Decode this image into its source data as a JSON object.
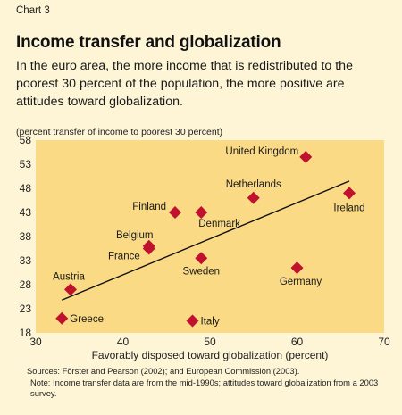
{
  "header": {
    "chart_label": "Chart 3",
    "title": "Income transfer and globalization",
    "subtitle": "In the euro area, the more income that is redistributed to the poorest 30 percent of the population, the more positive are attitudes toward globalization.",
    "unit_label": "(percent transfer of income to poorest 30 percent)"
  },
  "footer": {
    "sources": "Sources: Förster and Pearson (2002); and European Commission (2003).",
    "note": "Note: Income transfer data are from the mid-1990s; attitudes toward globalization from a 2003 survey."
  },
  "colors": {
    "plot_background": "#FBDA86",
    "marker": "#C0112E",
    "trend_line": "#111111"
  },
  "chart_data": {
    "type": "scatter",
    "xlabel": "Favorably disposed toward globalization (percent)",
    "ylabel": "",
    "xlim": [
      30,
      70
    ],
    "ylim": [
      18,
      58
    ],
    "xticks": [
      30,
      40,
      50,
      60,
      70
    ],
    "yticks": [
      18,
      23,
      28,
      33,
      38,
      43,
      48,
      53,
      58
    ],
    "grid": false,
    "points": [
      {
        "label": "United Kingdom",
        "x": 61,
        "y": 54.5
      },
      {
        "label": "Ireland",
        "x": 66,
        "y": 47
      },
      {
        "label": "Netherlands",
        "x": 55,
        "y": 46
      },
      {
        "label": "Finland",
        "x": 46,
        "y": 43
      },
      {
        "label": "Denmark",
        "x": 49,
        "y": 43
      },
      {
        "label": "Belgium",
        "x": 43,
        "y": 36
      },
      {
        "label": "France",
        "x": 43,
        "y": 35.5
      },
      {
        "label": "Sweden",
        "x": 49,
        "y": 33.5
      },
      {
        "label": "Germany",
        "x": 60,
        "y": 31.5
      },
      {
        "label": "Austria",
        "x": 34,
        "y": 27
      },
      {
        "label": "Greece",
        "x": 33,
        "y": 21
      },
      {
        "label": "Italy",
        "x": 48,
        "y": 20.5
      }
    ],
    "trend_line": {
      "x": [
        33,
        66
      ],
      "y": [
        24.8,
        49.5
      ]
    }
  }
}
